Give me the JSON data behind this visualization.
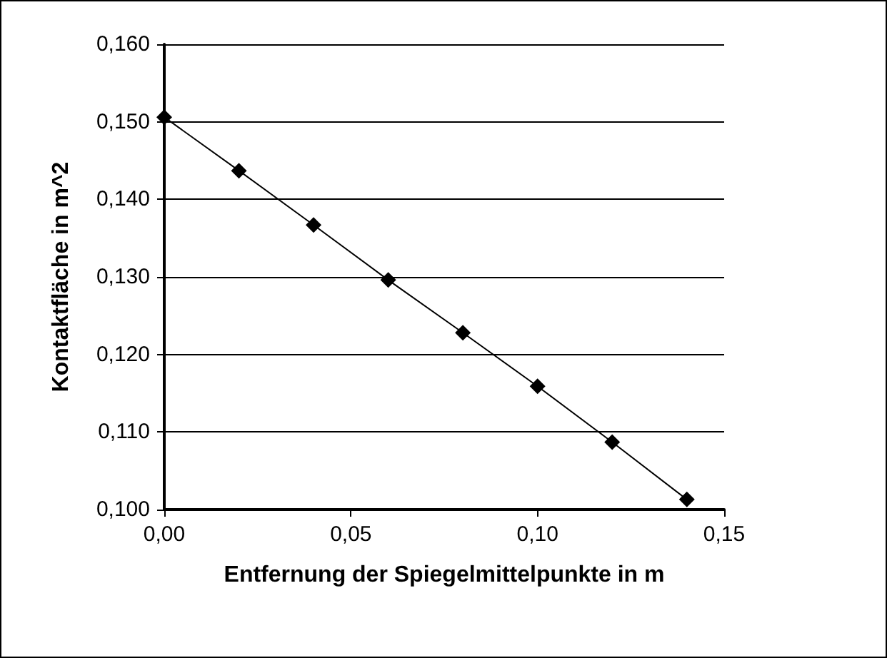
{
  "chart_data": {
    "type": "line",
    "xlabel": "Entfernung der Spiegelmittelpunkte in m",
    "ylabel": "Kontaktfläche in m^2",
    "x": [
      0,
      0.02,
      0.04,
      0.06,
      0.08,
      0.1,
      0.12,
      0.14
    ],
    "series": [
      {
        "color": "#000000",
        "values": [
          0.1506,
          0.1437,
          0.1367,
          0.1296,
          0.1228,
          0.1159,
          0.1087,
          0.1013
        ]
      }
    ],
    "xlim": [
      0,
      0.15
    ],
    "xticks": [
      {
        "value": 0,
        "label": "0,00"
      },
      {
        "value": 0.05,
        "label": "0,05"
      },
      {
        "value": 0.1,
        "label": "0,10"
      },
      {
        "value": 0.15,
        "label": "0,15"
      }
    ],
    "ylim": [
      0.1,
      0.16
    ],
    "yticks": [
      {
        "value": 0.1,
        "label": "0,100"
      },
      {
        "value": 0.11,
        "label": "0,110"
      },
      {
        "value": 0.12,
        "label": "0,120"
      },
      {
        "value": 0.13,
        "label": "0,130"
      },
      {
        "value": 0.14,
        "label": "0,140"
      },
      {
        "value": 0.15,
        "label": "0,150"
      },
      {
        "value": 0.16,
        "label": "0,160"
      }
    ],
    "grid": "y",
    "marker": "diamond",
    "line_style": "solid"
  }
}
